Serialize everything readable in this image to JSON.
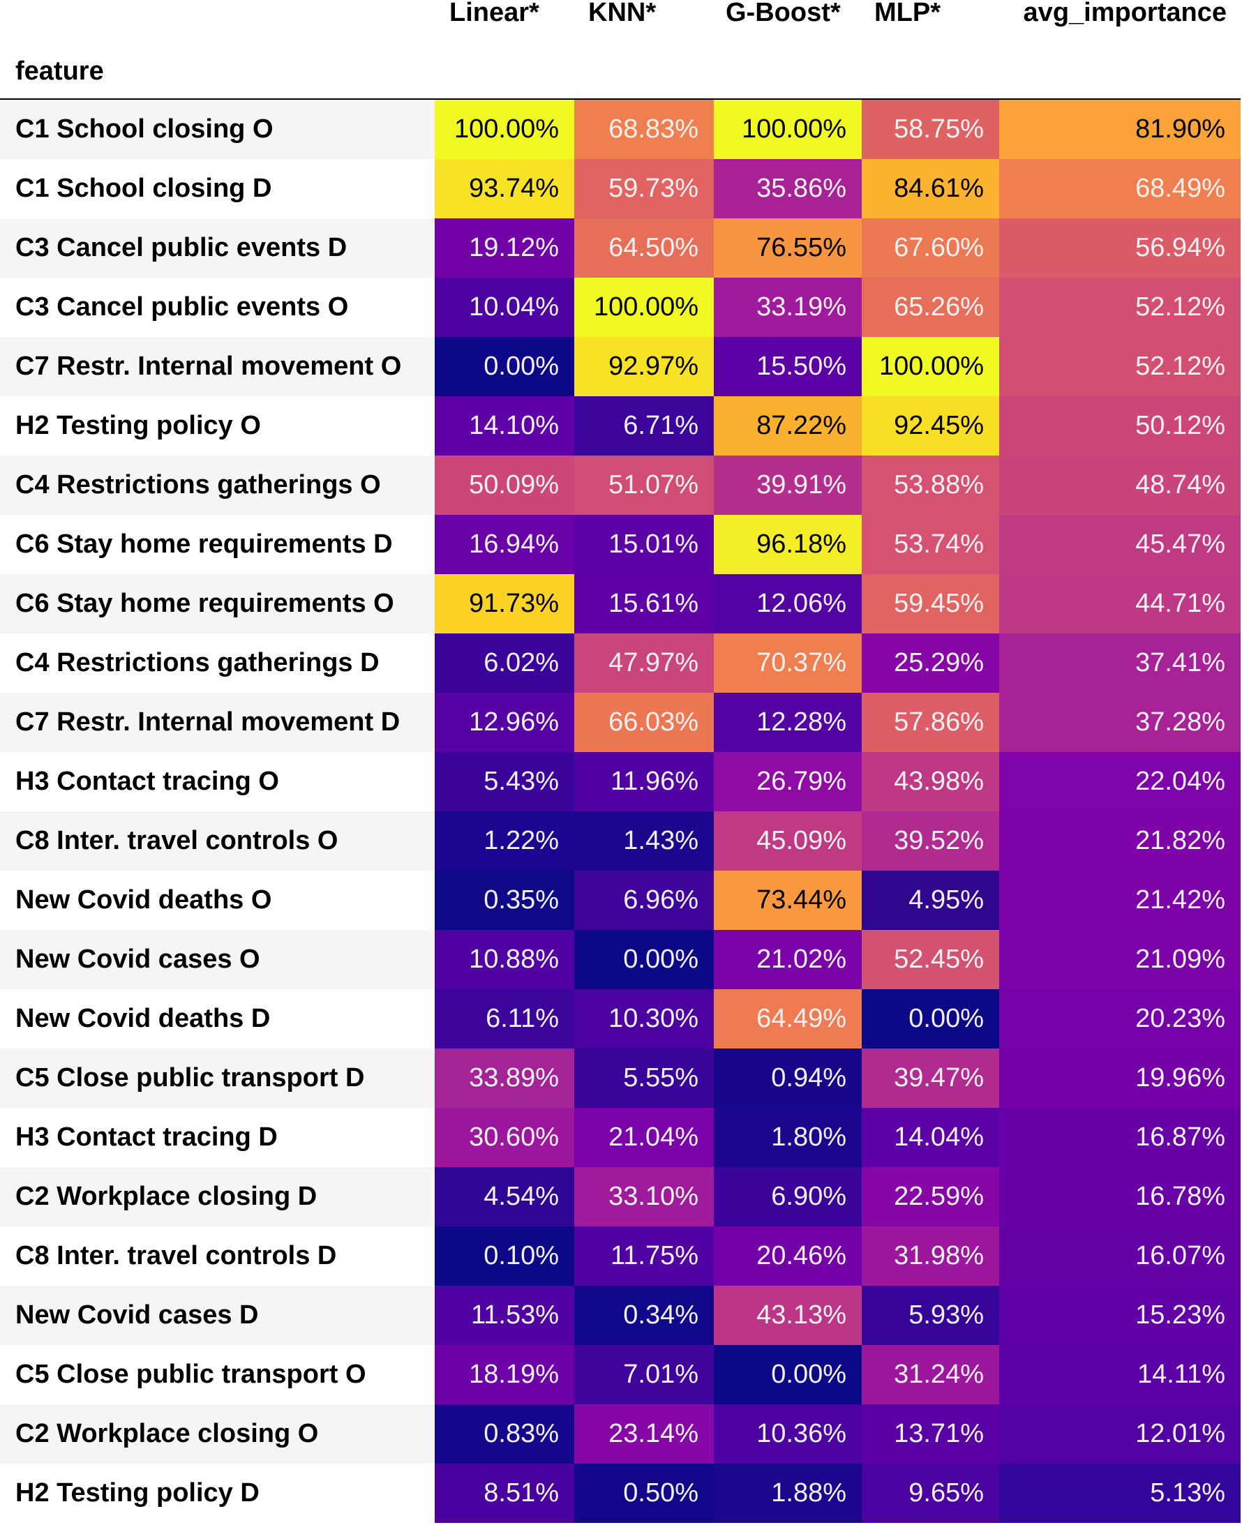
{
  "chart_data": {
    "type": "table",
    "index_label": "feature",
    "columns": [
      "Linear*",
      "KNN*",
      "G-Boost*",
      "MLP*",
      "avg_importance"
    ],
    "colormap": "plasma",
    "rows": [
      {
        "feature": "C1 School closing O",
        "values": [
          "100.00%",
          "68.83%",
          "100.00%",
          "58.75%",
          "81.90%"
        ],
        "colors": [
          "#f0f921",
          "#ef7f4f",
          "#f0f921",
          "#df6263",
          "#fba338"
        ]
      },
      {
        "feature": "C1 School closing D",
        "values": [
          "93.74%",
          "59.73%",
          "35.86%",
          "84.61%",
          "68.49%"
        ],
        "colors": [
          "#f7e225",
          "#e16462",
          "#a82296",
          "#fdb32f",
          "#ef7f4f"
        ]
      },
      {
        "feature": "C3 Cancel public events D",
        "values": [
          "19.12%",
          "64.50%",
          "76.55%",
          "67.60%",
          "56.94%"
        ],
        "colors": [
          "#7201a8",
          "#e76f5a",
          "#f89540",
          "#ed7953",
          "#db5c68"
        ]
      },
      {
        "feature": "C3 Cancel public events O",
        "values": [
          "10.04%",
          "100.00%",
          "33.19%",
          "65.26%",
          "52.12%"
        ],
        "colors": [
          "#4c02a1",
          "#f0f921",
          "#a01a9c",
          "#e76f5a",
          "#d24f71"
        ]
      },
      {
        "feature": "C7 Restr. Internal movement O",
        "values": [
          "0.00%",
          "92.97%",
          "15.50%",
          "100.00%",
          "52.12%"
        ],
        "colors": [
          "#0d0887",
          "#f7e225",
          "#5b01a5",
          "#f0f921",
          "#d24f71"
        ]
      },
      {
        "feature": "H2 Testing policy O",
        "values": [
          "14.10%",
          "6.71%",
          "87.22%",
          "92.45%",
          "50.12%"
        ],
        "colors": [
          "#5e01a6",
          "#3b049a",
          "#fcb030",
          "#f8df25",
          "#cc4778"
        ]
      },
      {
        "feature": "C4 Restrictions gatherings O",
        "values": [
          "50.09%",
          "51.07%",
          "39.91%",
          "53.88%",
          "48.74%"
        ],
        "colors": [
          "#cc4778",
          "#d04d73",
          "#b42e8d",
          "#d55272",
          "#c9447a"
        ]
      },
      {
        "feature": "C6 Stay home requirements D",
        "values": [
          "16.94%",
          "15.01%",
          "96.18%",
          "53.74%",
          "45.47%"
        ],
        "colors": [
          "#6a00a8",
          "#5c01a6",
          "#f3ee27",
          "#d55272",
          "#c03a83"
        ]
      },
      {
        "feature": "C6 Stay home requirements O",
        "values": [
          "91.73%",
          "15.61%",
          "12.06%",
          "59.45%",
          "44.71%"
        ],
        "colors": [
          "#fcd225",
          "#5e01a6",
          "#5302a3",
          "#e16462",
          "#be3885"
        ]
      },
      {
        "feature": "C4 Restrictions gatherings D",
        "values": [
          "6.02%",
          "47.97%",
          "70.37%",
          "25.29%",
          "37.41%"
        ],
        "colors": [
          "#3a049a",
          "#ca457a",
          "#f07f4f",
          "#8606a6",
          "#a72197"
        ]
      },
      {
        "feature": "C7 Restr. Internal movement D",
        "values": [
          "12.96%",
          "66.03%",
          "12.28%",
          "57.86%",
          "37.28%"
        ],
        "colors": [
          "#5702a5",
          "#ec7853",
          "#5302a3",
          "#dd5e66",
          "#a72197"
        ]
      },
      {
        "feature": "H3 Contact tracing O",
        "values": [
          "5.43%",
          "11.96%",
          "26.79%",
          "43.98%",
          "22.04%"
        ],
        "colors": [
          "#3a049a",
          "#5102a3",
          "#8e0ca4",
          "#be3885",
          "#7e03a8"
        ]
      },
      {
        "feature": "C8 Inter. travel controls O",
        "values": [
          "1.22%",
          "1.43%",
          "45.09%",
          "39.52%",
          "21.82%"
        ],
        "colors": [
          "#1a0690",
          "#1b068d",
          "#c03a83",
          "#b12a90",
          "#7d03a8"
        ]
      },
      {
        "feature": "New Covid deaths O",
        "values": [
          "0.35%",
          "6.96%",
          "73.44%",
          "4.95%",
          "21.42%"
        ],
        "colors": [
          "#0f0887",
          "#3f049c",
          "#f9983e",
          "#31068f",
          "#7c02a8"
        ]
      },
      {
        "feature": "New Covid cases O",
        "values": [
          "10.88%",
          "0.00%",
          "21.02%",
          "52.45%",
          "21.09%"
        ],
        "colors": [
          "#5102a3",
          "#0d0887",
          "#7a02a8",
          "#d35171",
          "#7a02a8"
        ]
      },
      {
        "feature": "New Covid deaths D",
        "values": [
          "6.11%",
          "10.30%",
          "64.49%",
          "0.00%",
          "20.23%"
        ],
        "colors": [
          "#3d049b",
          "#4c02a1",
          "#ee7b51",
          "#0d0887",
          "#7501a8"
        ]
      },
      {
        "feature": "C5 Close public transport D",
        "values": [
          "33.89%",
          "5.55%",
          "0.94%",
          "39.47%",
          "19.96%"
        ],
        "colors": [
          "#a42497",
          "#38049a",
          "#16078b",
          "#b12a90",
          "#7401a8"
        ]
      },
      {
        "feature": "H3 Contact tracing D",
        "values": [
          "30.60%",
          "21.04%",
          "1.80%",
          "14.04%",
          "16.87%"
        ],
        "colors": [
          "#9c179e",
          "#7a02a8",
          "#1c068e",
          "#5b01a5",
          "#6800a8"
        ]
      },
      {
        "feature": "C2 Workplace closing D",
        "values": [
          "4.54%",
          "33.10%",
          "6.90%",
          "22.59%",
          "16.78%"
        ],
        "colors": [
          "#2f0596",
          "#a01a9c",
          "#3a049a",
          "#8606a6",
          "#6800a8"
        ]
      },
      {
        "feature": "C8 Inter. travel controls D",
        "values": [
          "0.10%",
          "11.75%",
          "20.46%",
          "31.98%",
          "16.07%"
        ],
        "colors": [
          "#0d0887",
          "#5102a3",
          "#7401a8",
          "#9c179e",
          "#6500a7"
        ]
      },
      {
        "feature": "New Covid cases D",
        "values": [
          "11.53%",
          "0.34%",
          "43.13%",
          "5.93%",
          "15.23%"
        ],
        "colors": [
          "#5102a3",
          "#10078a",
          "#bc3587",
          "#37049a",
          "#6100a7"
        ]
      },
      {
        "feature": "C5 Close public transport O",
        "values": [
          "18.19%",
          "7.01%",
          "0.00%",
          "31.24%",
          "14.11%"
        ],
        "colors": [
          "#6e00a8",
          "#3f049c",
          "#0d0887",
          "#9c179e",
          "#5c01a6"
        ]
      },
      {
        "feature": "C2 Workplace closing O",
        "values": [
          "0.83%",
          "23.14%",
          "10.36%",
          "13.71%",
          "12.01%"
        ],
        "colors": [
          "#15078b",
          "#8606a6",
          "#4c02a1",
          "#5a01a5",
          "#5302a3"
        ]
      },
      {
        "feature": "H2 Testing policy D",
        "values": [
          "8.51%",
          "0.50%",
          "1.88%",
          "9.65%",
          "5.13%"
        ],
        "colors": [
          "#4902a0",
          "#12078a",
          "#1c068e",
          "#4a02a0",
          "#34059a"
        ]
      }
    ]
  }
}
